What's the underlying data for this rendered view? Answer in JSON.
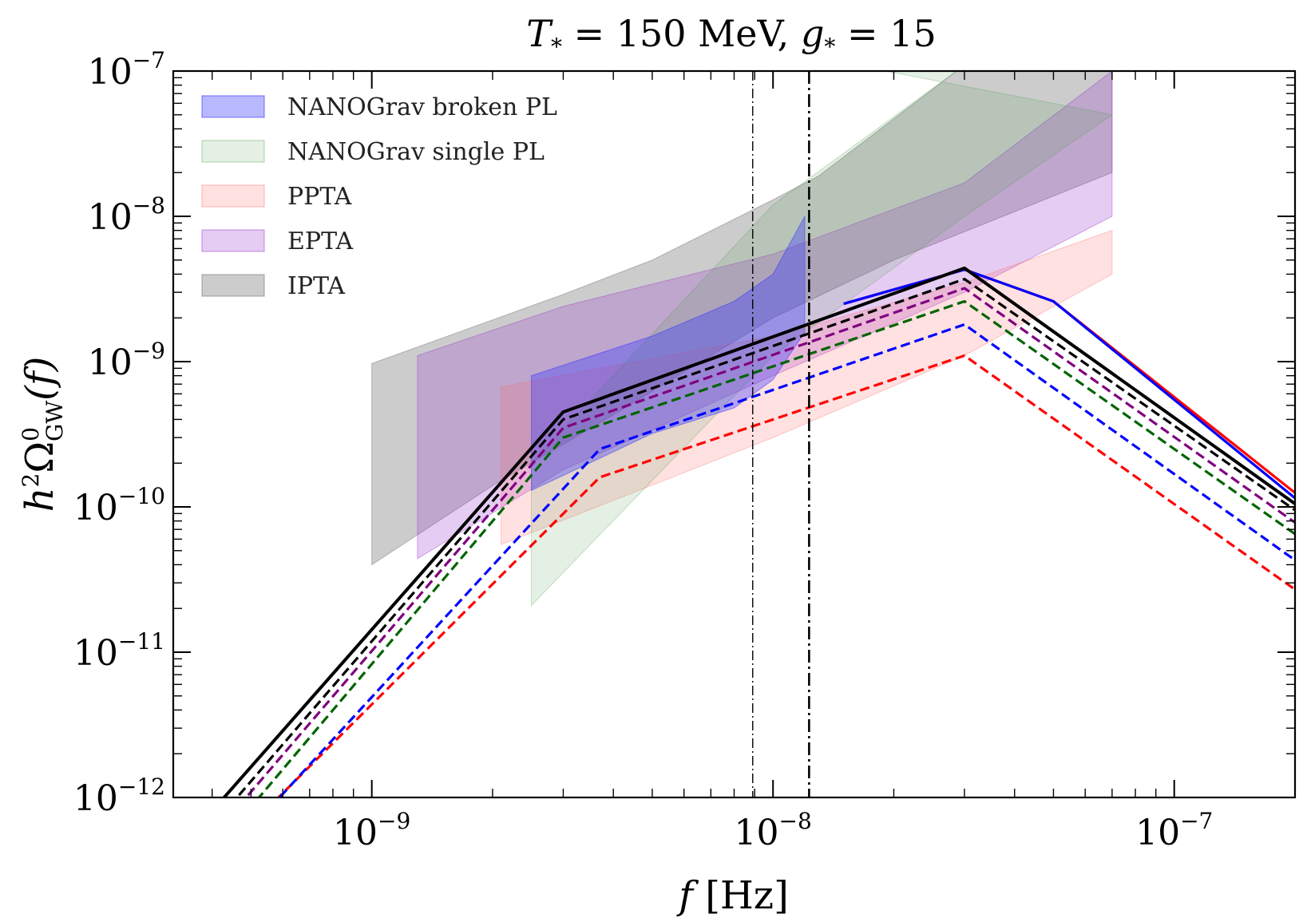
{
  "chart_data": {
    "type": "area",
    "title": {
      "a": "T",
      "a_sub": "*",
      "b": " = 150 MeV, ",
      "c": "g",
      "c_sub": "*",
      "d": " = 15"
    },
    "xlabel": {
      "main": "f",
      "unit": " [Hz]"
    },
    "ylabel": {
      "base": "h",
      "base_sup": "2",
      "omega": "Ω",
      "omega_sup": "0",
      "omega_sub": "GW",
      "arg": "(f)"
    },
    "x_scale": "log",
    "y_scale": "log",
    "xlim": [
      3.2e-10,
      2e-07
    ],
    "ylim": [
      1e-12,
      1e-07
    ],
    "x_ticks": [
      {
        "base": "10",
        "exp": "−9",
        "value": 1e-09
      },
      {
        "base": "10",
        "exp": "−8",
        "value": 1e-08
      },
      {
        "base": "10",
        "exp": "−7",
        "value": 1e-07
      }
    ],
    "y_ticks": [
      {
        "base": "10",
        "exp": "−12",
        "value": 1e-12
      },
      {
        "base": "10",
        "exp": "−11",
        "value": 1e-11
      },
      {
        "base": "10",
        "exp": "−10",
        "value": 1e-10
      },
      {
        "base": "10",
        "exp": "−9",
        "value": 1e-09
      },
      {
        "base": "10",
        "exp": "−8",
        "value": 1e-08
      },
      {
        "base": "10",
        "exp": "−7",
        "value": 1e-07
      }
    ],
    "legend_position": "top-left",
    "bands": [
      {
        "name": "IPTA",
        "color": "#808080",
        "opacity": 0.4,
        "upper": [
          [
            1e-09,
            9.7e-10
          ],
          [
            3e-09,
            2.9e-09
          ],
          [
            5e-09,
            5e-09
          ],
          [
            1e-08,
            1.3e-08
          ],
          [
            1.3e-08,
            1.9e-08
          ],
          [
            3e-08,
            1.1e-07
          ],
          [
            7e-08,
            1e-07
          ]
        ],
        "lower": [
          [
            1e-09,
            4e-11
          ],
          [
            2e-09,
            1.4e-10
          ],
          [
            4e-09,
            4.3e-10
          ],
          [
            1e-08,
            2e-09
          ],
          [
            2e-08,
            5e-09
          ],
          [
            7e-08,
            2e-08
          ]
        ]
      },
      {
        "name": "EPTA",
        "color": "#9932cc",
        "opacity": 0.25,
        "upper": [
          [
            1.3e-09,
            1.1e-09
          ],
          [
            3e-09,
            2.4e-09
          ],
          [
            1e-08,
            5.5e-09
          ],
          [
            3e-08,
            1.7e-08
          ],
          [
            7e-08,
            1e-07
          ]
        ],
        "lower": [
          [
            1.3e-09,
            4.4e-11
          ],
          [
            3e-09,
            1.8e-10
          ],
          [
            1e-08,
            8e-10
          ],
          [
            3e-08,
            3e-09
          ],
          [
            7e-08,
            1e-08
          ]
        ]
      },
      {
        "name": "PPTA",
        "color": "#ff6b6b",
        "opacity": 0.2,
        "upper": [
          [
            2.1e-09,
            6.7e-10
          ],
          [
            1e-08,
            1.5e-09
          ],
          [
            3e-08,
            3.5e-09
          ],
          [
            7e-08,
            8e-09
          ]
        ],
        "lower": [
          [
            2.1e-09,
            5.5e-11
          ],
          [
            1e-08,
            3e-10
          ],
          [
            3e-08,
            1.1e-09
          ],
          [
            7e-08,
            4e-09
          ]
        ]
      },
      {
        "name": "NANOGrav single PL",
        "color": "#4a9a4a",
        "opacity": 0.15,
        "upper": [
          [
            2.5e-09,
            2e-10
          ],
          [
            1e-08,
            1.2e-08
          ],
          [
            3e-08,
            1.1e-07
          ],
          [
            1.6e-08,
            1.1e-07
          ]
        ],
        "lower": [
          [
            2.5e-09,
            2.1e-11
          ],
          [
            1e-08,
            1.1e-09
          ],
          [
            3e-08,
            1e-08
          ],
          [
            7e-08,
            5e-08
          ]
        ]
      },
      {
        "name": "NANOGrav broken PL",
        "color": "#3333ff",
        "opacity": 0.35,
        "upper": [
          [
            2.5e-09,
            8e-10
          ],
          [
            5e-09,
            1.5e-09
          ],
          [
            8e-09,
            2.6e-09
          ],
          [
            1e-08,
            4e-09
          ],
          [
            1.2e-08,
            1e-08
          ]
        ],
        "lower": [
          [
            2.5e-09,
            1.3e-10
          ],
          [
            5e-09,
            3.2e-10
          ],
          [
            8e-09,
            4.8e-10
          ],
          [
            1e-08,
            7.5e-10
          ],
          [
            1.2e-08,
            1.6e-09
          ]
        ]
      }
    ],
    "legend_order": [
      "NANOGrav broken PL",
      "NANOGrav single PL",
      "PPTA",
      "EPTA",
      "IPTA"
    ],
    "curves": [
      {
        "color": "#ff0000",
        "style": "dashed",
        "width": 3.2,
        "points": [
          [
            3.2e-10,
            1.9e-13
          ],
          [
            3.7e-09,
            1.6e-10
          ],
          [
            3e-08,
            1.1e-09
          ],
          [
            2e-07,
            2.7e-11
          ]
        ]
      },
      {
        "color": "#0000ff",
        "style": "dashed",
        "width": 3.2,
        "points": [
          [
            3.2e-10,
            1.6e-13
          ],
          [
            3.7e-09,
            2.5e-10
          ],
          [
            3e-08,
            1.8e-09
          ],
          [
            2e-07,
            4.3e-11
          ]
        ]
      },
      {
        "color": "#006400",
        "style": "dashed",
        "width": 3.2,
        "points": [
          [
            3.2e-10,
            2e-13
          ],
          [
            3e-09,
            3e-10
          ],
          [
            3e-08,
            2.6e-09
          ],
          [
            2e-07,
            6.5e-11
          ]
        ]
      },
      {
        "color": "#800080",
        "style": "dashed",
        "width": 3.2,
        "points": [
          [
            3.2e-10,
            2.6e-13
          ],
          [
            3e-09,
            3.5e-10
          ],
          [
            3e-08,
            3.2e-09
          ],
          [
            2e-07,
            7.8e-11
          ]
        ]
      },
      {
        "color": "#000000",
        "style": "dashed",
        "width": 3.2,
        "points": [
          [
            3.2e-10,
            3.1e-13
          ],
          [
            3e-09,
            4e-10
          ],
          [
            3e-08,
            3.7e-09
          ],
          [
            2e-07,
            9.5e-11
          ]
        ]
      },
      {
        "color": "#ff0000",
        "style": "solid",
        "width": 3.2,
        "points": [
          [
            1.5e-08,
            2.5e-09
          ],
          [
            3e-08,
            4.3e-09
          ],
          [
            5e-08,
            2.6e-09
          ],
          [
            2e-07,
            1.25e-10
          ]
        ]
      },
      {
        "color": "#0000ff",
        "style": "solid",
        "width": 3.2,
        "points": [
          [
            1.5e-08,
            2.5e-09
          ],
          [
            3e-08,
            4.3e-09
          ],
          [
            5e-08,
            2.6e-09
          ],
          [
            2e-07,
            1.15e-10
          ]
        ]
      },
      {
        "color": "#000000",
        "style": "solid",
        "width": 4.0,
        "points": [
          [
            3.2e-10,
            4e-13
          ],
          [
            3e-09,
            4.5e-10
          ],
          [
            3e-08,
            4.4e-09
          ],
          [
            2e-07,
            1.05e-10
          ]
        ]
      }
    ],
    "vertical_lines": [
      {
        "x": 8.9e-09,
        "style": "dashdot",
        "width": 1.4,
        "color": "#000000"
      },
      {
        "x": 1.23e-08,
        "style": "dashdot",
        "width": 2.6,
        "color": "#000000"
      }
    ]
  }
}
